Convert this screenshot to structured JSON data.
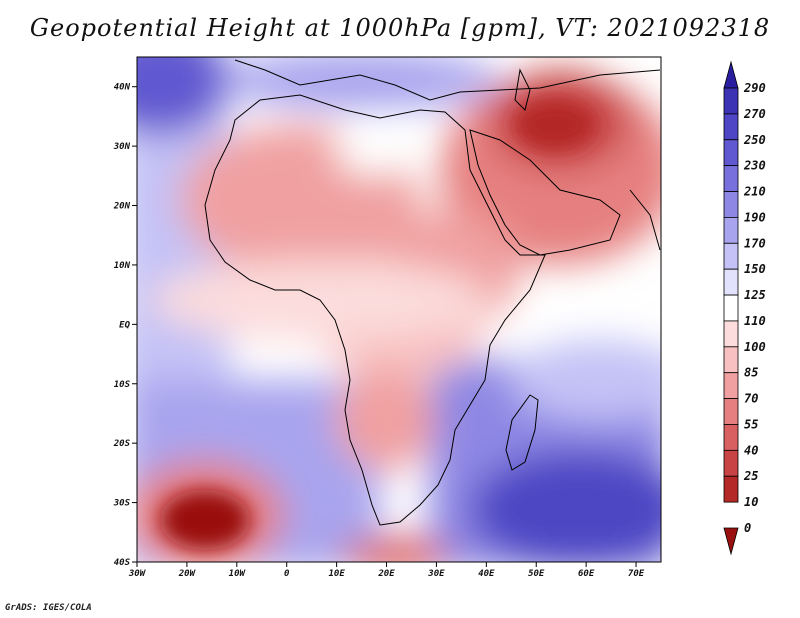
{
  "title": "Geopotential Height at 1000hPa [gpm], VT: 2021092318",
  "credit": "GrADS: IGES/COLA",
  "axes": {
    "lon_labels": [
      "30W",
      "20W",
      "10W",
      "0",
      "10E",
      "20E",
      "30E",
      "40E",
      "50E",
      "60E",
      "70E"
    ],
    "lat_labels": [
      "40N",
      "30N",
      "20N",
      "10N",
      "EQ",
      "10S",
      "20S",
      "30S",
      "40S"
    ]
  },
  "colorbar": {
    "levels": [
      "290",
      "270",
      "250",
      "230",
      "210",
      "190",
      "170",
      "150",
      "125",
      "110",
      "100",
      "85",
      "70",
      "55",
      "40",
      "25",
      "10",
      "0"
    ],
    "colors": [
      "#2a1ea0",
      "#3c32b4",
      "#4e46c4",
      "#6058d0",
      "#7870dc",
      "#8e88e4",
      "#a8a4ee",
      "#c4c2f6",
      "#e2e2fc",
      "#ffffff",
      "#fcdcdc",
      "#f8c0c0",
      "#f0a0a0",
      "#e68080",
      "#d86060",
      "#c84444",
      "#b42828",
      "#9a1010"
    ]
  },
  "map": {
    "field_colors": {
      "deep_blue": "#3c32b4",
      "mid_blue": "#8e88e4",
      "light_blue": "#c4c2f6",
      "pale_blue": "#e2e2fc",
      "white": "#ffffff",
      "pale_red": "#fcdcdc",
      "light_red": "#f0a0a0",
      "mid_red": "#e68080",
      "dark_red": "#c84444",
      "deep_red": "#9a1010"
    }
  }
}
